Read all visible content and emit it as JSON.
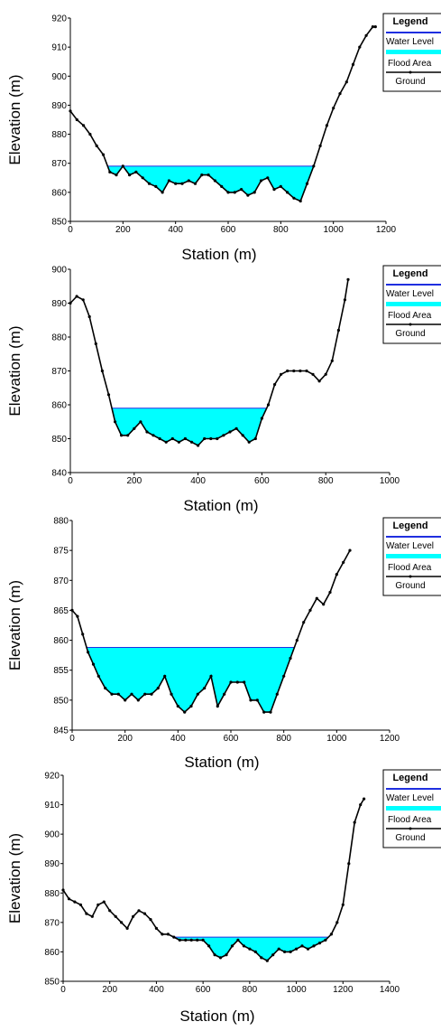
{
  "legend": {
    "title": "Legend",
    "water_label": "Water Level",
    "flood_label": "Flood Area",
    "ground_label": "Ground"
  },
  "colors": {
    "water_line": "#1f2fe0",
    "flood_fill": "#00ffff",
    "ground": "#000000",
    "axis": "#000000"
  },
  "chart_data": [
    {
      "type": "area",
      "title": "",
      "xlabel": "Station (m)",
      "ylabel": "Elevation (m)",
      "xlim": [
        0,
        1200
      ],
      "ylim": [
        850,
        920
      ],
      "xticks": [
        0,
        200,
        400,
        600,
        800,
        1000,
        1200
      ],
      "yticks": [
        850,
        860,
        870,
        880,
        890,
        900,
        910,
        920
      ],
      "water_level": 869,
      "series": [
        {
          "name": "Ground",
          "x": [
            0,
            25,
            50,
            75,
            100,
            125,
            150,
            175,
            200,
            225,
            250,
            275,
            300,
            325,
            350,
            375,
            400,
            425,
            450,
            475,
            500,
            525,
            550,
            575,
            600,
            625,
            650,
            675,
            700,
            725,
            750,
            775,
            800,
            825,
            850,
            875,
            900,
            925,
            950,
            975,
            1000,
            1025,
            1050,
            1075,
            1100,
            1125,
            1150,
            1160
          ],
          "y": [
            888,
            885,
            883,
            880,
            876,
            873,
            867,
            866,
            869,
            866,
            867,
            865,
            863,
            862,
            860,
            864,
            863,
            863,
            864,
            863,
            866,
            866,
            864,
            862,
            860,
            860,
            861,
            859,
            860,
            864,
            865,
            861,
            862,
            860,
            858,
            857,
            863,
            869,
            876,
            883,
            889,
            894,
            898,
            904,
            910,
            914,
            917,
            917
          ]
        }
      ]
    },
    {
      "type": "area",
      "title": "",
      "xlabel": "Station (m)",
      "ylabel": "Elevation (m)",
      "xlim": [
        0,
        1000
      ],
      "ylim": [
        840,
        900
      ],
      "xticks": [
        0,
        200,
        400,
        600,
        800,
        1000
      ],
      "yticks": [
        840,
        850,
        860,
        870,
        880,
        890,
        900
      ],
      "water_level": 859,
      "series": [
        {
          "name": "Ground",
          "x": [
            0,
            20,
            40,
            60,
            80,
            100,
            120,
            140,
            160,
            180,
            200,
            220,
            240,
            260,
            280,
            300,
            320,
            340,
            360,
            380,
            400,
            420,
            440,
            460,
            480,
            500,
            520,
            540,
            560,
            580,
            600,
            620,
            640,
            660,
            680,
            700,
            720,
            740,
            760,
            780,
            800,
            820,
            840,
            860,
            870
          ],
          "y": [
            890,
            892,
            891,
            886,
            878,
            870,
            863,
            855,
            851,
            851,
            853,
            855,
            852,
            851,
            850,
            849,
            850,
            849,
            850,
            849,
            848,
            850,
            850,
            850,
            851,
            852,
            853,
            851,
            849,
            850,
            856,
            860,
            866,
            869,
            870,
            870,
            870,
            870,
            869,
            867,
            869,
            873,
            882,
            891,
            897
          ]
        }
      ]
    },
    {
      "type": "area",
      "title": "",
      "xlabel": "Station (m)",
      "ylabel": "Elevation (m)",
      "xlim": [
        0,
        1200
      ],
      "ylim": [
        845,
        880
      ],
      "xticks": [
        0,
        200,
        400,
        600,
        800,
        1000,
        1200
      ],
      "yticks": [
        845,
        850,
        855,
        860,
        865,
        870,
        875,
        880
      ],
      "water_level": 858.8,
      "series": [
        {
          "name": "Ground",
          "x": [
            0,
            20,
            40,
            60,
            80,
            100,
            125,
            150,
            175,
            200,
            225,
            250,
            275,
            300,
            325,
            350,
            375,
            400,
            425,
            450,
            475,
            500,
            525,
            550,
            575,
            600,
            625,
            650,
            675,
            700,
            725,
            750,
            775,
            800,
            825,
            850,
            875,
            900,
            925,
            950,
            975,
            1000,
            1025,
            1050
          ],
          "y": [
            865,
            864,
            861,
            858,
            856,
            854,
            852,
            851,
            851,
            850,
            851,
            850,
            851,
            851,
            852,
            854,
            851,
            849,
            848,
            849,
            851,
            852,
            854,
            849,
            851,
            853,
            853,
            853,
            850,
            850,
            848,
            848,
            851,
            854,
            857,
            860,
            863,
            865,
            867,
            866,
            868,
            871,
            873,
            875
          ]
        }
      ]
    },
    {
      "type": "area",
      "title": "",
      "xlabel": "Station (m)",
      "ylabel": "Elevation (m)",
      "xlim": [
        0,
        1400
      ],
      "ylim": [
        850,
        920
      ],
      "xticks": [
        0,
        200,
        400,
        600,
        800,
        1000,
        1200,
        1400
      ],
      "yticks": [
        850,
        860,
        870,
        880,
        890,
        900,
        910,
        920
      ],
      "water_level": 865,
      "series": [
        {
          "name": "Ground",
          "x": [
            0,
            25,
            50,
            75,
            100,
            125,
            150,
            175,
            200,
            225,
            250,
            275,
            300,
            325,
            350,
            375,
            400,
            425,
            450,
            475,
            500,
            525,
            550,
            575,
            600,
            625,
            650,
            675,
            700,
            725,
            750,
            775,
            800,
            825,
            850,
            875,
            900,
            925,
            950,
            975,
            1000,
            1025,
            1050,
            1075,
            1100,
            1125,
            1150,
            1175,
            1200,
            1225,
            1250,
            1275,
            1290
          ],
          "y": [
            881,
            878,
            877,
            876,
            873,
            872,
            876,
            877,
            874,
            872,
            870,
            868,
            872,
            874,
            873,
            871,
            868,
            866,
            866,
            865,
            864,
            864,
            864,
            864,
            864,
            862,
            859,
            858,
            859,
            862,
            864,
            862,
            861,
            860,
            858,
            857,
            859,
            861,
            860,
            860,
            861,
            862,
            861,
            862,
            863,
            864,
            866,
            870,
            876,
            890,
            904,
            910,
            912
          ]
        }
      ]
    }
  ]
}
